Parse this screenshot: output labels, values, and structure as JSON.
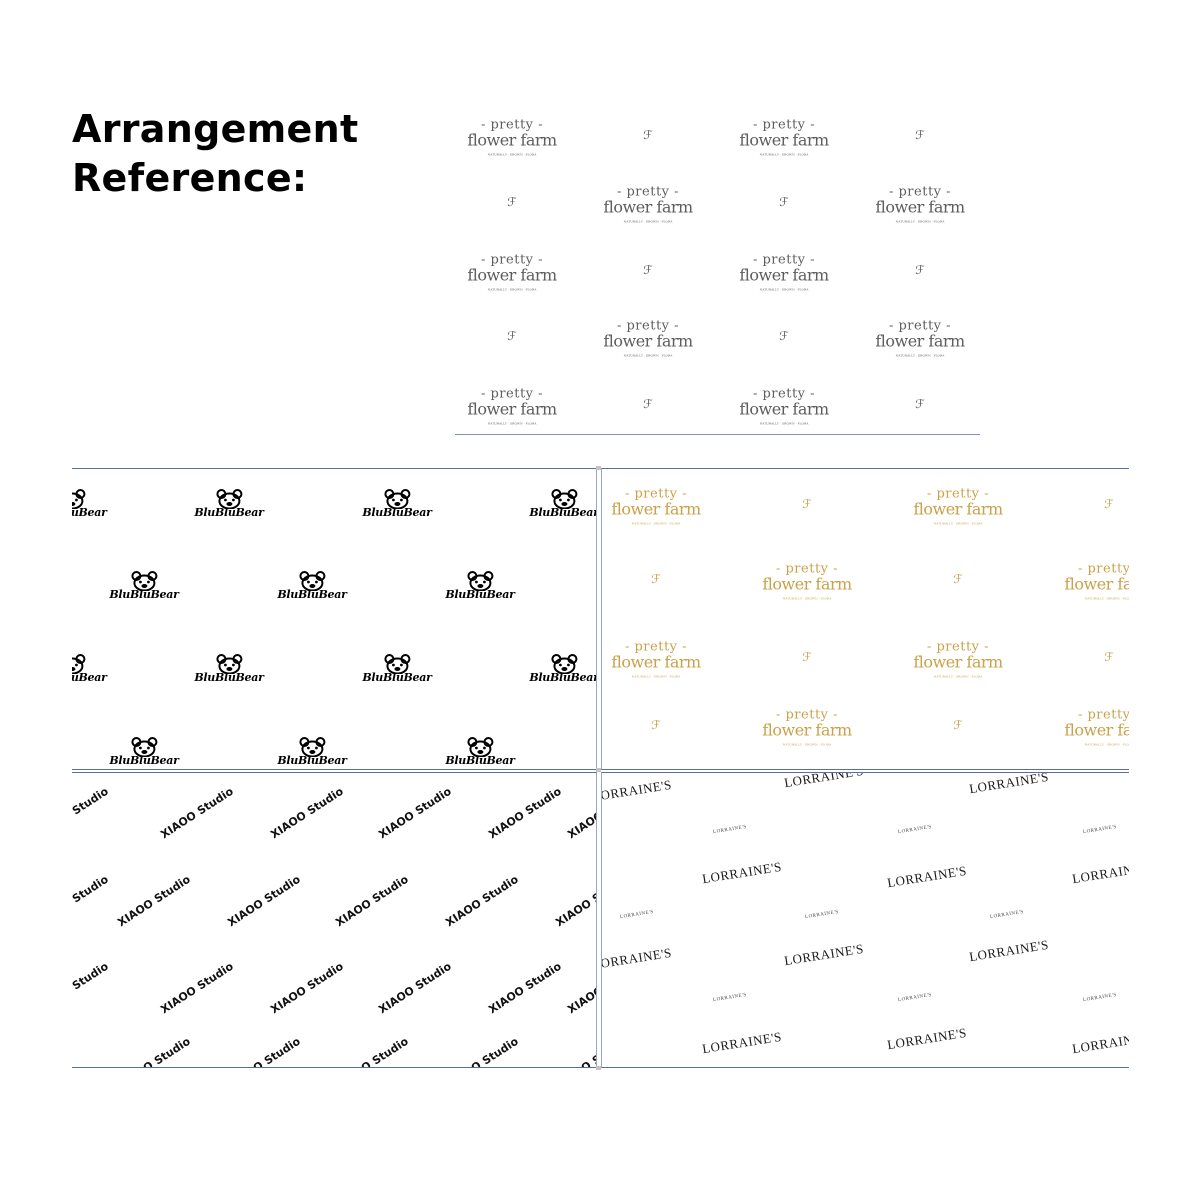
{
  "heading": {
    "line1": "Arrangement",
    "line2": "Reference:"
  },
  "pretty_flower_farm": {
    "line1": "- pretty -",
    "line2": "flower farm",
    "line3": "NATURALLY · GROWN · FLORA",
    "monogram": "ℱ"
  },
  "blublubear": {
    "word": "BluBluBear"
  },
  "xiaoo": {
    "word": "XIAOO Studio"
  },
  "lorraines": {
    "big": "LORRAINE'S",
    "small": "LORRAINE'S"
  },
  "colors": {
    "grey_print": "#5e5e5e",
    "gold_print": "#c9a24a",
    "black_print": "#000000",
    "panel_border": "#5a6f9a"
  }
}
